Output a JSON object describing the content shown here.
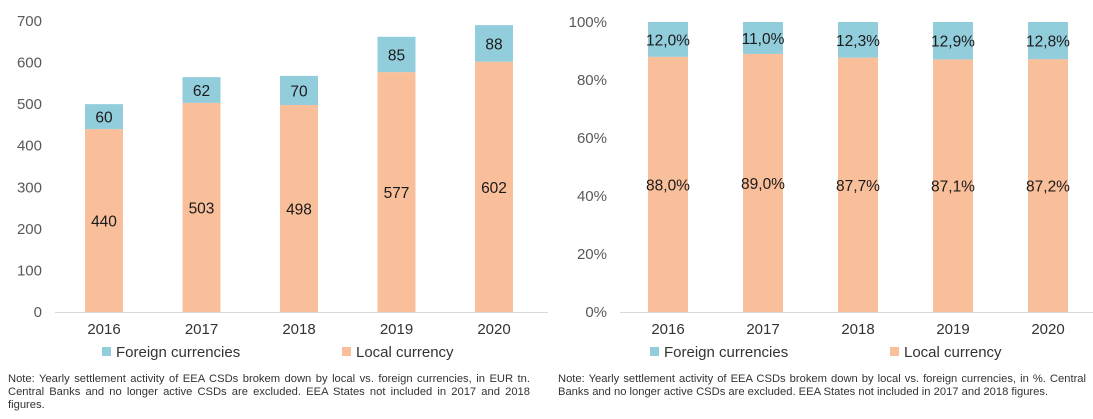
{
  "colors": {
    "foreign": "#92CDDC",
    "local": "#F8BF9A",
    "axis_text": "#595959"
  },
  "chart_data": [
    {
      "type": "bar",
      "stacked": true,
      "categories": [
        "2016",
        "2017",
        "2018",
        "2019",
        "2020"
      ],
      "series": [
        {
          "name": "Local currency",
          "values": [
            440,
            503,
            498,
            577,
            602
          ],
          "labels": [
            "440",
            "503",
            "498",
            "577",
            "602"
          ]
        },
        {
          "name": "Foreign currencies",
          "values": [
            60,
            62,
            70,
            85,
            88
          ],
          "labels": [
            "60",
            "62",
            "70",
            "85",
            "88"
          ]
        }
      ],
      "ylim": [
        0,
        700
      ],
      "yticks": [
        "0",
        "100",
        "200",
        "300",
        "400",
        "500",
        "600",
        "700"
      ],
      "legend": [
        "Foreign currencies",
        "Local currency"
      ],
      "legend_position": "bottom",
      "grid": false,
      "note": "Note: Yearly settlement activity of EEA CSDs brokem down by local vs. foreign currencies, in EUR tn. Central Banks and no longer active CSDs are excluded. EEA States not included in 2017 and 2018 figures."
    },
    {
      "type": "bar",
      "stacked": true,
      "categories": [
        "2016",
        "2017",
        "2018",
        "2019",
        "2020"
      ],
      "series": [
        {
          "name": "Local currency",
          "values": [
            88.0,
            89.0,
            87.7,
            87.1,
            87.2
          ],
          "labels": [
            "88,0%",
            "89,0%",
            "87,7%",
            "87,1%",
            "87,2%"
          ]
        },
        {
          "name": "Foreign currencies",
          "values": [
            12.0,
            11.0,
            12.3,
            12.9,
            12.8
          ],
          "labels": [
            "12,0%",
            "11,0%",
            "12,3%",
            "12,9%",
            "12,8%"
          ]
        }
      ],
      "ylim": [
        0,
        100
      ],
      "yticks": [
        "0%",
        "20%",
        "40%",
        "60%",
        "80%",
        "100%"
      ],
      "legend": [
        "Foreign currencies",
        "Local currency"
      ],
      "legend_position": "bottom",
      "grid": false,
      "note": "Note: Yearly settlement activity of EEA CSDs brokem down by local vs. foreign currencies, in %. Central Banks and no longer active CSDs are excluded. EEA States not included in 2017 and 2018 figures."
    }
  ]
}
